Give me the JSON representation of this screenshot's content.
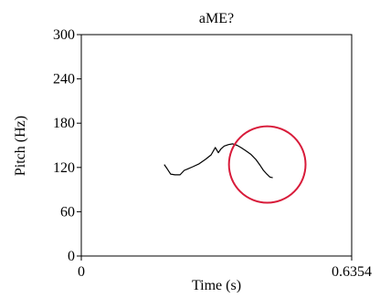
{
  "chart_data": {
    "type": "line",
    "title": "aME?",
    "xlabel": "Time (s)",
    "ylabel": "Pitch (Hz)",
    "xlim": [
      0,
      0.6354
    ],
    "ylim": [
      0,
      300
    ],
    "x_tick_labels": [
      "0",
      "0.6354"
    ],
    "y_tick_labels": [
      "0",
      "60",
      "120",
      "180",
      "240",
      "300"
    ],
    "y_ticks": [
      0,
      60,
      120,
      180,
      240,
      300
    ],
    "x_ticks": [
      0,
      0.6354
    ],
    "grid": false,
    "series": [
      {
        "color": "#000000",
        "x": [
          0.195,
          0.202,
          0.21,
          0.22,
          0.232,
          0.242,
          0.25,
          0.262,
          0.277,
          0.292,
          0.305,
          0.315,
          0.322,
          0.328,
          0.336,
          0.346,
          0.356,
          0.366,
          0.375,
          0.386,
          0.398,
          0.41,
          0.42,
          0.428,
          0.436,
          0.443,
          0.45
        ],
        "y": [
          124,
          118,
          111,
          110,
          110,
          116,
          118,
          121,
          125,
          131,
          137,
          147,
          140,
          145,
          149,
          151,
          152,
          150,
          147,
          143,
          138,
          131,
          123,
          116,
          111,
          107,
          106
        ]
      }
    ],
    "annotation": {
      "shape": "circle",
      "color": "#d81b3a",
      "center": [
        0.437,
        124
      ],
      "radius_x_data": 0.09
    }
  }
}
